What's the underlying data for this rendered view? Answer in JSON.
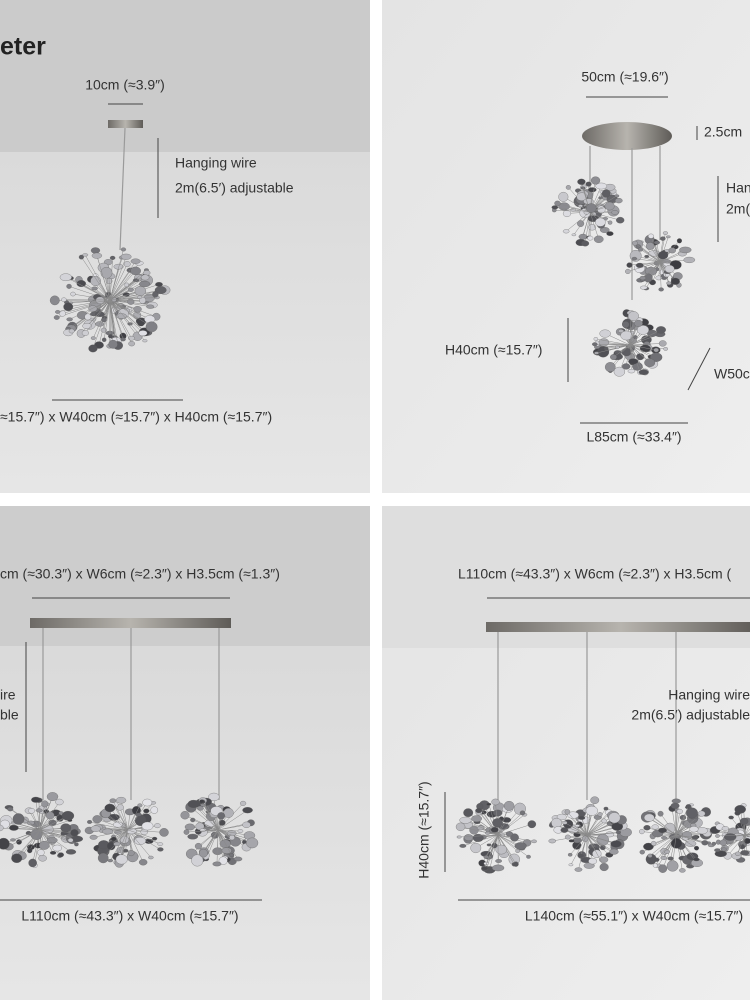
{
  "panels": [
    {
      "labels": [
        "eter",
        "10cm (≈3.9″)",
        "Hanging wire",
        "2m(6.5′) adjustable",
        "≈15.7″) x W40cm (≈15.7″) x H40cm (≈15.7″)"
      ]
    },
    {
      "labels": [
        "50cm (≈19.6″)",
        "2.5cm",
        "Han",
        "2m(",
        "H40cm (≈15.7″)",
        "W50c",
        "L85cm (≈33.4″)"
      ]
    },
    {
      "labels": [
        "cm (≈30.3″) x W6cm (≈2.3″) x H3.5cm (≈1.3″)",
        "ire",
        "ble",
        "L110cm (≈43.3″) x W40cm (≈15.7″)"
      ]
    },
    {
      "labels": [
        "L110cm (≈43.3″) x W6cm (≈2.3″) x H3.5cm (",
        "Hanging wire",
        "2m(6.5′) adjustable",
        "H40cm (≈15.7″)",
        "L140cm (≈55.1″) x W40cm (≈15.7″)"
      ]
    }
  ]
}
